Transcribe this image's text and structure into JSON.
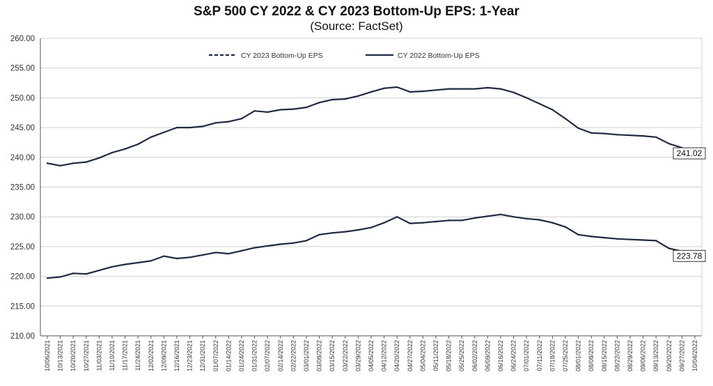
{
  "chart_data": {
    "type": "line",
    "title": "S&P 500 CY 2022 & CY 2023 Bottom-Up  EPS: 1-Year",
    "subtitle": "(Source: FactSet)",
    "ylim": [
      210,
      260
    ],
    "yticks": [
      "210.00",
      "215.00",
      "220.00",
      "225.00",
      "230.00",
      "235.00",
      "240.00",
      "245.00",
      "250.00",
      "255.00",
      "260.00"
    ],
    "x_tick_labels": [
      "10/06/2021",
      "10/13/2021",
      "10/20/2021",
      "10/27/2021",
      "11/03/2021",
      "11/10/2021",
      "11/17/2021",
      "11/24/2021",
      "12/02/2021",
      "12/09/2021",
      "12/16/2021",
      "12/23/2021",
      "12/31/2021",
      "01/07/2022",
      "01/14/2022",
      "01/24/2022",
      "01/31/2022",
      "02/07/2022",
      "02/14/2022",
      "02/22/2022",
      "03/01/2022",
      "03/08/2022",
      "03/15/2022",
      "03/22/2022",
      "03/29/2022",
      "04/05/2022",
      "04/12/2022",
      "04/20/2022",
      "04/27/2022",
      "05/04/2022",
      "05/11/2022",
      "05/18/2022",
      "05/25/2022",
      "06/02/2022",
      "06/09/2022",
      "06/16/2022",
      "06/24/2022",
      "07/01/2022",
      "07/11/2022",
      "07/18/2022",
      "07/25/2022",
      "08/01/2022",
      "08/08/2022",
      "08/15/2022",
      "08/22/2022",
      "08/29/2022",
      "09/06/2022",
      "09/13/2022",
      "09/20/2022",
      "09/27/2022",
      "10/04/2022"
    ],
    "legend": {
      "position": "top-center"
    },
    "grid": {
      "horizontal": true,
      "vertical": false
    },
    "series": [
      {
        "name": "CY 2023 Bottom-Up EPS",
        "style": "dashed",
        "color": "#1f2a44",
        "end_label": "241.02",
        "values": [
          239.0,
          238.6,
          239.0,
          239.2,
          239.9,
          240.8,
          241.4,
          242.2,
          243.4,
          244.2,
          245.0,
          245.0,
          245.2,
          245.8,
          246.0,
          246.5,
          247.8,
          247.6,
          248.0,
          248.1,
          248.4,
          249.2,
          249.7,
          249.8,
          250.3,
          251.0,
          251.6,
          251.8,
          251.0,
          251.1,
          251.3,
          251.5,
          251.5,
          251.5,
          251.7,
          251.5,
          250.9,
          250.0,
          249.0,
          248.0,
          246.5,
          244.9,
          244.1,
          244.0,
          243.8,
          243.7,
          243.6,
          243.4,
          242.3,
          241.6,
          241.02
        ]
      },
      {
        "name": "CY 2022 Bottom-Up EPS",
        "style": "solid",
        "color": "#1f2a44",
        "end_label": "223.78",
        "values": [
          219.7,
          219.9,
          220.5,
          220.4,
          221.0,
          221.6,
          222.0,
          222.3,
          222.6,
          223.4,
          223.0,
          223.2,
          223.6,
          224.0,
          223.8,
          224.3,
          224.8,
          225.1,
          225.4,
          225.6,
          226.0,
          227.0,
          227.3,
          227.5,
          227.8,
          228.2,
          229.0,
          230.0,
          228.9,
          229.0,
          229.2,
          229.4,
          229.4,
          229.8,
          230.1,
          230.4,
          230.0,
          229.7,
          229.5,
          229.0,
          228.3,
          227.0,
          226.7,
          226.5,
          226.3,
          226.2,
          226.1,
          226.0,
          224.7,
          224.2,
          223.78
        ]
      }
    ]
  }
}
